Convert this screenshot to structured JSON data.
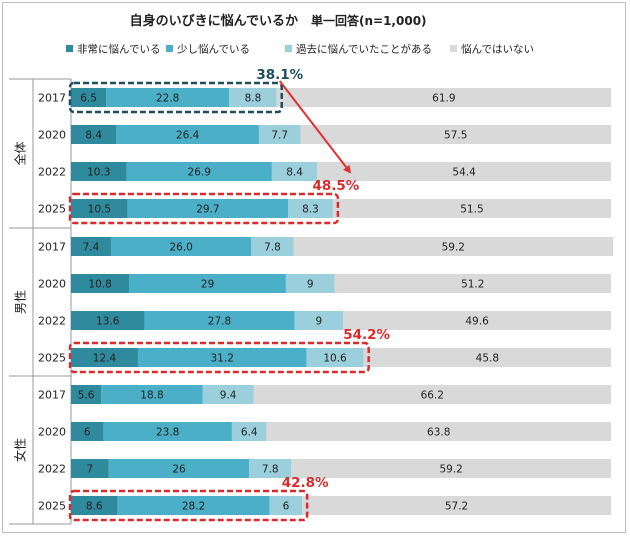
{
  "chart_data": {
    "type": "bar",
    "stacked": true,
    "orientation": "horizontal",
    "title": "自身のいびきに悩んでいるか",
    "subtitle": "単一回答(n=1,000)",
    "legend_position": "top",
    "series": [
      {
        "name": "非常に悩んでいる",
        "color": "#2f8a9e"
      },
      {
        "name": "少し悩んでいる",
        "color": "#4aafc7"
      },
      {
        "name": "過去に悩んでいたことがある",
        "color": "#9bcfdc"
      },
      {
        "name": "悩んではいない",
        "color": "#d9d9d9"
      }
    ],
    "groups": [
      {
        "label": "全体",
        "rows": [
          {
            "year": "2017",
            "values": [
              6.5,
              22.8,
              8.8,
              61.9
            ],
            "labels": [
              "6.5",
              "22.8",
              "8.8",
              "61.9"
            ]
          },
          {
            "year": "2020",
            "values": [
              8.4,
              26.4,
              7.7,
              57.5
            ],
            "labels": [
              "8.4",
              "26.4",
              "7.7",
              "57.5"
            ]
          },
          {
            "year": "2022",
            "values": [
              10.3,
              26.9,
              8.4,
              54.4
            ],
            "labels": [
              "10.3",
              "26.9",
              "8.4",
              "54.4"
            ]
          },
          {
            "year": "2025",
            "values": [
              10.5,
              29.7,
              8.3,
              51.5
            ],
            "labels": [
              "10.5",
              "29.7",
              "8.3",
              "51.5"
            ]
          }
        ]
      },
      {
        "label": "男性",
        "rows": [
          {
            "year": "2017",
            "values": [
              7.4,
              26.0,
              7.8,
              59.2
            ],
            "labels": [
              "7.4",
              "26.0",
              "7.8",
              "59.2"
            ]
          },
          {
            "year": "2020",
            "values": [
              10.8,
              29,
              9,
              51.2
            ],
            "labels": [
              "10.8",
              "29",
              "9",
              "51.2"
            ]
          },
          {
            "year": "2022",
            "values": [
              13.6,
              27.8,
              9,
              49.6
            ],
            "labels": [
              "13.6",
              "27.8",
              "9",
              "49.6"
            ]
          },
          {
            "year": "2025",
            "values": [
              12.4,
              31.2,
              10.6,
              45.8
            ],
            "labels": [
              "12.4",
              "31.2",
              "10.6",
              "45.8"
            ]
          }
        ]
      },
      {
        "label": "女性",
        "rows": [
          {
            "year": "2017",
            "values": [
              5.6,
              18.8,
              9.4,
              66.2
            ],
            "labels": [
              "5.6",
              "18.8",
              "9.4",
              "66.2"
            ]
          },
          {
            "year": "2020",
            "values": [
              6,
              23.8,
              6.4,
              63.8
            ],
            "labels": [
              "6",
              "23.8",
              "6.4",
              "63.8"
            ]
          },
          {
            "year": "2022",
            "values": [
              7,
              26,
              7.8,
              59.2
            ],
            "labels": [
              "7",
              "26",
              "7.8",
              "59.2"
            ]
          },
          {
            "year": "2025",
            "values": [
              8.6,
              28.2,
              6,
              57.2
            ],
            "labels": [
              "8.6",
              "28.2",
              "6",
              "57.2"
            ]
          }
        ]
      }
    ],
    "xlim": [
      0,
      100
    ],
    "grid": false,
    "highlights": [
      {
        "group": 0,
        "row": 0,
        "span_series": 3,
        "total": "38.1%",
        "color": "#1f4e5f"
      },
      {
        "group": 0,
        "row": 3,
        "span_series": 3,
        "total": "48.5%",
        "color": "#d92b2b"
      },
      {
        "group": 1,
        "row": 3,
        "span_series": 3,
        "total": "54.2%",
        "color": "#d92b2b"
      },
      {
        "group": 2,
        "row": 3,
        "span_series": 3,
        "total": "42.8%",
        "color": "#d92b2b"
      }
    ],
    "arrow": {
      "from_highlight": 0,
      "to_highlight": 1,
      "color": "#e03030"
    }
  }
}
